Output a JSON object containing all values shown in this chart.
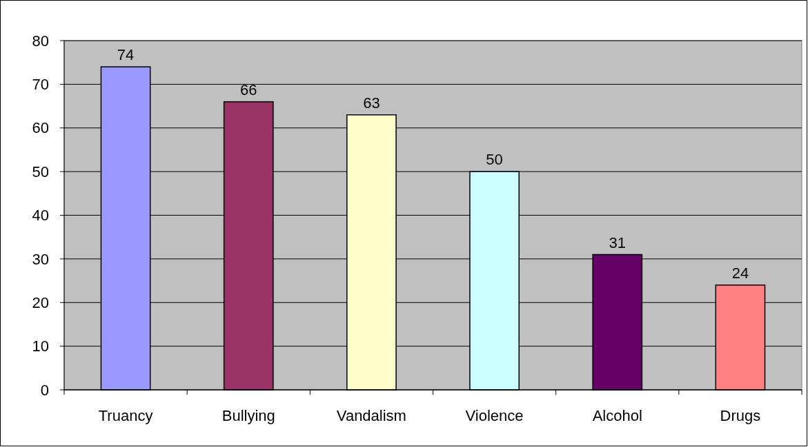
{
  "chart_data": {
    "type": "bar",
    "categories": [
      "Truancy",
      "Bullying",
      "Vandalism",
      "Violence",
      "Alcohol",
      "Drugs"
    ],
    "values": [
      74,
      66,
      63,
      50,
      31,
      24
    ],
    "colors": [
      "#9999ff",
      "#993366",
      "#ffffcc",
      "#ccffff",
      "#660066",
      "#ff8080"
    ],
    "ylim": [
      0,
      80
    ],
    "yticks": [
      0,
      10,
      20,
      30,
      40,
      50,
      60,
      70,
      80
    ],
    "grid": "y",
    "data_labels": true
  }
}
